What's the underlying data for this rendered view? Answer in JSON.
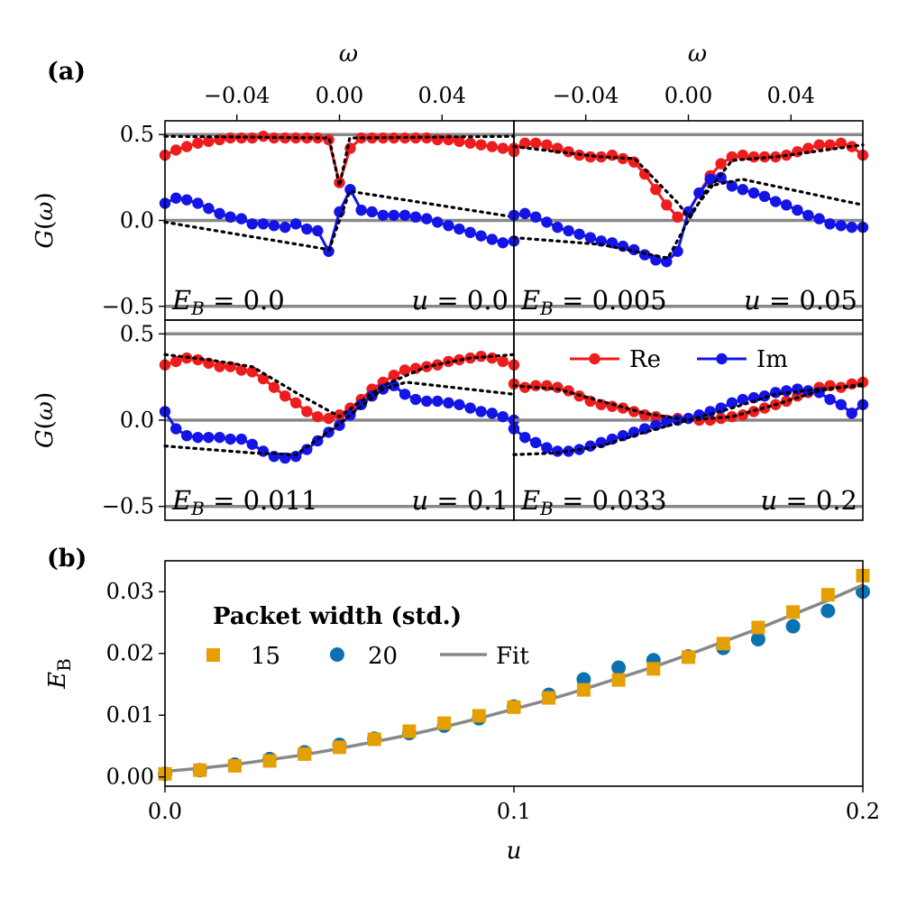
{
  "panel_labels": {
    "a": "(a)",
    "b": "(b)"
  },
  "colors": {
    "re": "#ee1c1c",
    "im": "#1414e6",
    "ref_line": "#888888",
    "fit": "#888888",
    "s15": "#e69f00",
    "s20": "#0b72b2",
    "frame": "#000000"
  },
  "chart_data": [
    {
      "type": "line",
      "panel": "a-top-left",
      "xlabel": "ω",
      "ylabel": "G(ω)",
      "xlim": [
        -0.068,
        0.068
      ],
      "ylim": [
        -0.58,
        0.58
      ],
      "xticks": [
        "−0.04",
        "0.00",
        "0.04"
      ],
      "yticks": [
        "0.5",
        "0.0",
        "−0.5"
      ],
      "annotations": {
        "eb": "E_B = 0.0",
        "u": "u = 0.0"
      },
      "series": [
        {
          "name": "Re",
          "x": [
            -0.068,
            -0.0637,
            -0.0595,
            -0.0552,
            -0.051,
            -0.0467,
            -0.0425,
            -0.0382,
            -0.034,
            -0.0297,
            -0.0255,
            -0.0212,
            -0.017,
            -0.0127,
            -0.0085,
            -0.0042,
            0.0,
            0.0042,
            0.0085,
            0.0127,
            0.017,
            0.0212,
            0.0255,
            0.0297,
            0.034,
            0.0382,
            0.0425,
            0.0467,
            0.051,
            0.0552,
            0.0595,
            0.0637,
            0.068
          ],
          "y": [
            0.38,
            0.41,
            0.43,
            0.45,
            0.46,
            0.47,
            0.48,
            0.48,
            0.48,
            0.49,
            0.48,
            0.48,
            0.48,
            0.48,
            0.48,
            0.47,
            0.22,
            0.42,
            0.48,
            0.48,
            0.48,
            0.48,
            0.48,
            0.48,
            0.48,
            0.47,
            0.47,
            0.46,
            0.45,
            0.44,
            0.43,
            0.42,
            0.4
          ]
        },
        {
          "name": "Im",
          "x": [
            -0.068,
            -0.0637,
            -0.0595,
            -0.0552,
            -0.051,
            -0.0467,
            -0.0425,
            -0.0382,
            -0.034,
            -0.0297,
            -0.0255,
            -0.0212,
            -0.017,
            -0.0127,
            -0.0085,
            -0.0042,
            0.0,
            0.0042,
            0.0085,
            0.0127,
            0.017,
            0.0212,
            0.0255,
            0.0297,
            0.034,
            0.0382,
            0.0425,
            0.0467,
            0.051,
            0.0552,
            0.0595,
            0.0637,
            0.068
          ],
          "y": [
            0.1,
            0.13,
            0.12,
            0.1,
            0.07,
            0.04,
            0.02,
            0.01,
            -0.02,
            -0.02,
            -0.03,
            -0.04,
            -0.02,
            -0.05,
            -0.06,
            -0.18,
            0.05,
            0.18,
            0.06,
            0.05,
            0.03,
            0.03,
            0.03,
            0.02,
            0.01,
            -0.01,
            -0.03,
            -0.05,
            -0.07,
            -0.09,
            -0.11,
            -0.13,
            -0.12
          ]
        },
        {
          "name": "",
          "style": "dotted",
          "x": [
            -0.068,
            -0.004,
            0.0,
            0.004,
            0.068
          ],
          "y": [
            0.49,
            0.48,
            0.2,
            0.48,
            0.49
          ]
        },
        {
          "name": "",
          "style": "dotted",
          "x": [
            -0.068,
            -0.004,
            0.0,
            0.004,
            0.068
          ],
          "y": [
            -0.01,
            -0.17,
            0.0,
            0.17,
            0.02
          ]
        }
      ]
    },
    {
      "type": "line",
      "panel": "a-top-right",
      "xlabel": "ω",
      "ylabel": "",
      "xlim": [
        -0.068,
        0.068
      ],
      "ylim": [
        -0.58,
        0.58
      ],
      "xticks": [
        "−0.04",
        "0.00",
        "0.04"
      ],
      "yticks": [],
      "annotations": {
        "eb": "E_B = 0.005",
        "u": "u = 0.05"
      },
      "series": [
        {
          "name": "Re",
          "x": [
            -0.068,
            -0.0637,
            -0.0595,
            -0.0552,
            -0.051,
            -0.0467,
            -0.0425,
            -0.0382,
            -0.034,
            -0.0297,
            -0.0255,
            -0.0212,
            -0.017,
            -0.0127,
            -0.0085,
            -0.0042,
            0.0,
            0.0042,
            0.0085,
            0.0127,
            0.017,
            0.0212,
            0.0255,
            0.0297,
            0.034,
            0.0382,
            0.0425,
            0.0467,
            0.051,
            0.0552,
            0.0595,
            0.0637,
            0.068
          ],
          "y": [
            0.42,
            0.45,
            0.45,
            0.44,
            0.42,
            0.4,
            0.38,
            0.37,
            0.37,
            0.38,
            0.36,
            0.34,
            0.27,
            0.18,
            0.09,
            0.02,
            0.05,
            0.16,
            0.26,
            0.33,
            0.37,
            0.38,
            0.37,
            0.37,
            0.37,
            0.38,
            0.4,
            0.42,
            0.44,
            0.44,
            0.45,
            0.43,
            0.38
          ]
        },
        {
          "name": "Im",
          "x": [
            -0.068,
            -0.0637,
            -0.0595,
            -0.0552,
            -0.051,
            -0.0467,
            -0.0425,
            -0.0382,
            -0.034,
            -0.0297,
            -0.0255,
            -0.0212,
            -0.017,
            -0.0127,
            -0.0085,
            -0.0042,
            0.0,
            0.0042,
            0.0085,
            0.0127,
            0.017,
            0.0212,
            0.0255,
            0.0297,
            0.034,
            0.0382,
            0.0425,
            0.0467,
            0.051,
            0.0552,
            0.0595,
            0.0637,
            0.068
          ],
          "y": [
            0.03,
            0.04,
            0.02,
            -0.01,
            -0.04,
            -0.06,
            -0.08,
            -0.1,
            -0.12,
            -0.13,
            -0.15,
            -0.17,
            -0.2,
            -0.23,
            -0.24,
            -0.18,
            0.05,
            0.16,
            0.24,
            0.25,
            0.2,
            0.18,
            0.16,
            0.14,
            0.11,
            0.09,
            0.06,
            0.03,
            0.01,
            -0.02,
            -0.03,
            -0.04,
            -0.04
          ]
        },
        {
          "name": "",
          "style": "dotted",
          "x": [
            -0.068,
            -0.034,
            -0.021,
            -0.004,
            0.0,
            0.004,
            0.017,
            0.034,
            0.068
          ],
          "y": [
            0.43,
            0.37,
            0.36,
            0.1,
            0.02,
            0.1,
            0.35,
            0.37,
            0.44
          ]
        },
        {
          "name": "",
          "style": "dotted",
          "x": [
            -0.068,
            -0.034,
            -0.008,
            0.0,
            0.008,
            0.021,
            0.068
          ],
          "y": [
            -0.1,
            -0.14,
            -0.22,
            0.0,
            0.2,
            0.24,
            0.09
          ]
        }
      ]
    },
    {
      "type": "line",
      "panel": "a-bottom-left",
      "xlabel": "",
      "ylabel": "G(ω)",
      "xlim": [
        -0.068,
        0.068
      ],
      "ylim": [
        -0.58,
        0.58
      ],
      "xticks": [],
      "yticks": [
        "0.5",
        "0.0",
        "−0.5"
      ],
      "annotations": {
        "eb": "E_B = 0.011",
        "u": "u = 0.1"
      },
      "series": [
        {
          "name": "Re",
          "x": [
            -0.068,
            -0.0637,
            -0.0595,
            -0.0552,
            -0.051,
            -0.0467,
            -0.0425,
            -0.0382,
            -0.034,
            -0.0297,
            -0.0255,
            -0.0212,
            -0.017,
            -0.0127,
            -0.0085,
            -0.0042,
            0.0,
            0.0042,
            0.0085,
            0.0127,
            0.017,
            0.0212,
            0.0255,
            0.0297,
            0.034,
            0.0382,
            0.0425,
            0.0467,
            0.051,
            0.0552,
            0.0595,
            0.0637,
            0.068
          ],
          "y": [
            0.32,
            0.34,
            0.36,
            0.35,
            0.33,
            0.31,
            0.31,
            0.29,
            0.28,
            0.24,
            0.19,
            0.14,
            0.1,
            0.05,
            0.02,
            0.01,
            0.03,
            0.07,
            0.12,
            0.18,
            0.22,
            0.26,
            0.29,
            0.3,
            0.31,
            0.32,
            0.34,
            0.35,
            0.36,
            0.37,
            0.36,
            0.34,
            0.32
          ]
        },
        {
          "name": "Im",
          "x": [
            -0.068,
            -0.0637,
            -0.0595,
            -0.0552,
            -0.051,
            -0.0467,
            -0.0425,
            -0.0382,
            -0.034,
            -0.0297,
            -0.0255,
            -0.0212,
            -0.017,
            -0.0127,
            -0.0085,
            -0.0042,
            0.0,
            0.0042,
            0.0085,
            0.0127,
            0.017,
            0.0212,
            0.0255,
            0.0297,
            0.034,
            0.0382,
            0.0425,
            0.0467,
            0.051,
            0.0552,
            0.0595,
            0.0637,
            0.068
          ],
          "y": [
            0.05,
            -0.05,
            -0.09,
            -0.1,
            -0.1,
            -0.1,
            -0.11,
            -0.11,
            -0.14,
            -0.18,
            -0.21,
            -0.22,
            -0.21,
            -0.17,
            -0.12,
            -0.07,
            -0.03,
            0.03,
            0.09,
            0.14,
            0.18,
            0.2,
            0.15,
            0.12,
            0.11,
            0.11,
            0.1,
            0.09,
            0.07,
            0.05,
            0.04,
            0.02,
            0.0
          ]
        },
        {
          "name": "",
          "style": "dotted",
          "x": [
            -0.068,
            -0.051,
            -0.034,
            -0.017,
            0.0,
            0.017,
            0.034,
            0.051,
            0.068
          ],
          "y": [
            0.38,
            0.35,
            0.31,
            0.16,
            0.02,
            0.2,
            0.31,
            0.36,
            0.38
          ]
        },
        {
          "name": "",
          "style": "dotted",
          "x": [
            -0.068,
            -0.034,
            -0.017,
            0.0,
            0.017,
            0.026,
            0.068
          ],
          "y": [
            -0.15,
            -0.19,
            -0.2,
            -0.02,
            0.18,
            0.22,
            0.15
          ]
        }
      ]
    },
    {
      "type": "line",
      "panel": "a-bottom-right",
      "xlabel": "",
      "ylabel": "",
      "xlim": [
        -0.068,
        0.068
      ],
      "ylim": [
        -0.58,
        0.58
      ],
      "xticks": [],
      "yticks": [],
      "annotations": {
        "eb": "E_B = 0.033",
        "u": "u = 0.2"
      },
      "legend": {
        "entries": [
          "Re",
          "Im"
        ],
        "placement": "top-right"
      },
      "series": [
        {
          "name": "Re",
          "x": [
            -0.068,
            -0.0637,
            -0.0595,
            -0.0552,
            -0.051,
            -0.0467,
            -0.0425,
            -0.0382,
            -0.034,
            -0.0297,
            -0.0255,
            -0.0212,
            -0.017,
            -0.0127,
            -0.0085,
            -0.0042,
            0.0,
            0.0042,
            0.0085,
            0.0127,
            0.017,
            0.0212,
            0.0255,
            0.0297,
            0.034,
            0.0382,
            0.0425,
            0.0467,
            0.051,
            0.0552,
            0.0595,
            0.0637,
            0.068
          ],
          "y": [
            0.21,
            0.19,
            0.2,
            0.2,
            0.19,
            0.17,
            0.14,
            0.11,
            0.09,
            0.08,
            0.07,
            0.05,
            0.03,
            0.02,
            0.0,
            0.01,
            0.01,
            0.0,
            0.0,
            0.01,
            0.02,
            0.03,
            0.05,
            0.07,
            0.09,
            0.11,
            0.14,
            0.16,
            0.19,
            0.2,
            0.19,
            0.21,
            0.22
          ]
        },
        {
          "name": "Im",
          "x": [
            -0.068,
            -0.0637,
            -0.0595,
            -0.0552,
            -0.051,
            -0.0467,
            -0.0425,
            -0.0382,
            -0.034,
            -0.0297,
            -0.0255,
            -0.0212,
            -0.017,
            -0.0127,
            -0.0085,
            -0.0042,
            0.0,
            0.0042,
            0.0085,
            0.0127,
            0.017,
            0.0212,
            0.0255,
            0.0297,
            0.034,
            0.0382,
            0.0425,
            0.0467,
            0.051,
            0.0552,
            0.0595,
            0.0637,
            0.068
          ],
          "y": [
            -0.05,
            -0.1,
            -0.13,
            -0.16,
            -0.18,
            -0.18,
            -0.17,
            -0.15,
            -0.13,
            -0.11,
            -0.09,
            -0.07,
            -0.05,
            -0.03,
            -0.01,
            0.0,
            0.01,
            0.03,
            0.05,
            0.07,
            0.1,
            0.12,
            0.13,
            0.14,
            0.16,
            0.17,
            0.18,
            0.17,
            0.16,
            0.12,
            0.09,
            0.04,
            0.09
          ]
        },
        {
          "name": "",
          "style": "dotted",
          "x": [
            -0.068,
            -0.051,
            -0.034,
            -0.017,
            0.0,
            0.017,
            0.034,
            0.051,
            0.068
          ],
          "y": [
            0.2,
            0.18,
            0.11,
            0.04,
            0.0,
            0.02,
            0.09,
            0.17,
            0.21
          ]
        },
        {
          "name": "",
          "style": "dotted",
          "x": [
            -0.068,
            -0.051,
            -0.034,
            -0.017,
            0.0,
            0.017,
            0.034,
            0.051,
            0.068
          ],
          "y": [
            -0.2,
            -0.19,
            -0.15,
            -0.07,
            0.0,
            0.07,
            0.15,
            0.18,
            0.2
          ]
        }
      ]
    },
    {
      "type": "scatter",
      "panel": "b",
      "xlabel": "u",
      "ylabel": "E_B",
      "xlim": [
        0.0,
        0.2
      ],
      "ylim": [
        -0.0015,
        0.035
      ],
      "xticks": [
        "0.0",
        "0.1",
        "0.2"
      ],
      "yticks": [
        "0.00",
        "0.01",
        "0.02",
        "0.03"
      ],
      "legend": {
        "title": "Packet width (std.)",
        "entries": [
          "15",
          "20",
          "Fit"
        ],
        "placement": "top-left"
      },
      "series": [
        {
          "name": "15",
          "marker": "square",
          "x": [
            0.0,
            0.01,
            0.02,
            0.03,
            0.04,
            0.05,
            0.06,
            0.07,
            0.08,
            0.09,
            0.1,
            0.11,
            0.12,
            0.13,
            0.14,
            0.15,
            0.16,
            0.17,
            0.18,
            0.19,
            0.2
          ],
          "y": [
            0.0005,
            0.0011,
            0.0018,
            0.0026,
            0.0037,
            0.0048,
            0.0061,
            0.0074,
            0.0087,
            0.0099,
            0.0113,
            0.0128,
            0.0141,
            0.0157,
            0.0175,
            0.0194,
            0.0216,
            0.0242,
            0.0267,
            0.0295,
            0.0326
          ]
        },
        {
          "name": "20",
          "marker": "circle",
          "x": [
            0.0,
            0.01,
            0.02,
            0.03,
            0.04,
            0.05,
            0.06,
            0.07,
            0.08,
            0.09,
            0.1,
            0.11,
            0.12,
            0.13,
            0.14,
            0.15,
            0.16,
            0.17,
            0.18,
            0.19,
            0.2
          ],
          "y": [
            0.0005,
            0.0011,
            0.002,
            0.0029,
            0.004,
            0.0052,
            0.0062,
            0.0071,
            0.0083,
            0.0095,
            0.0114,
            0.0133,
            0.0158,
            0.0177,
            0.0189,
            0.0195,
            0.0209,
            0.0223,
            0.0244,
            0.0269,
            0.03
          ]
        },
        {
          "name": "Fit",
          "style": "line",
          "x": [
            0.0,
            0.01,
            0.02,
            0.03,
            0.04,
            0.05,
            0.06,
            0.07,
            0.08,
            0.09,
            0.1,
            0.11,
            0.12,
            0.13,
            0.14,
            0.15,
            0.16,
            0.17,
            0.18,
            0.19,
            0.2
          ],
          "y": [
            0.0009,
            0.0014,
            0.002,
            0.0028,
            0.0036,
            0.0046,
            0.0057,
            0.0068,
            0.0081,
            0.0095,
            0.011,
            0.0125,
            0.0142,
            0.016,
            0.0178,
            0.0198,
            0.0219,
            0.024,
            0.0263,
            0.0286,
            0.0311
          ]
        }
      ]
    }
  ]
}
